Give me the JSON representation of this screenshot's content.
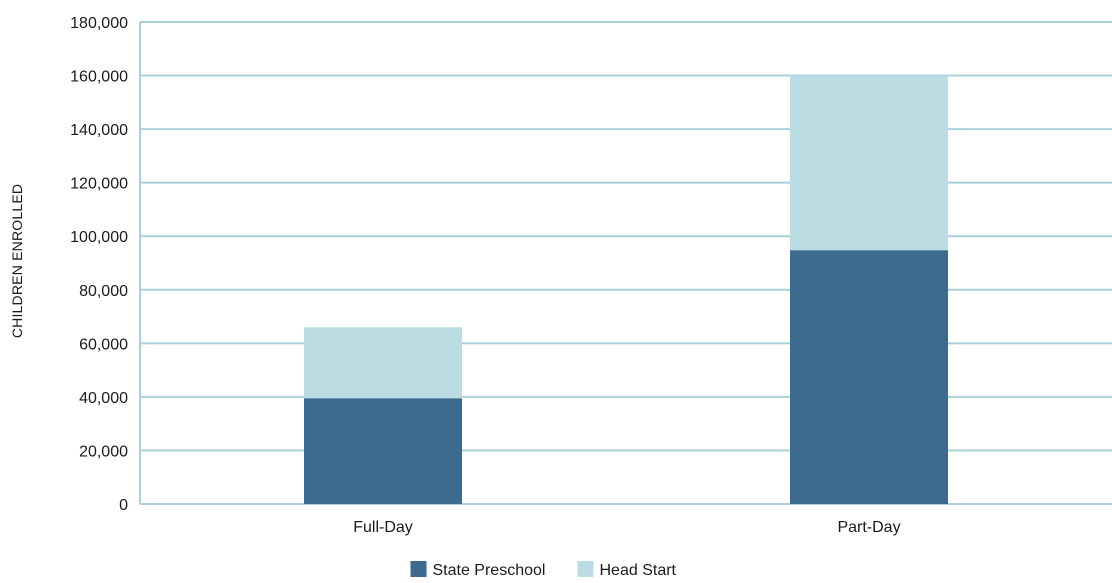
{
  "chart_data": {
    "type": "bar",
    "stacked": true,
    "title": "",
    "xlabel": "",
    "ylabel": "CHILDREN ENROLLED",
    "categories": [
      "Full-Day",
      "Part-Day"
    ],
    "series": [
      {
        "name": "State Preschool",
        "values": [
          39500,
          94800
        ],
        "color": "#3d6a8f"
      },
      {
        "name": "Head Start",
        "values": [
          26500,
          65200
        ],
        "color": "#bcdce4"
      }
    ],
    "ylim": [
      0,
      180000
    ],
    "yticks": [
      0,
      20000,
      40000,
      60000,
      80000,
      100000,
      120000,
      140000,
      160000,
      180000
    ],
    "ytick_labels": [
      "0",
      "20,000",
      "40,000",
      "60,000",
      "80,000",
      "100,000",
      "120,000",
      "140,000",
      "160,000",
      "180,000"
    ],
    "grid": true,
    "grid_color": "#a9d0dc",
    "legend_position": "bottom-center"
  }
}
